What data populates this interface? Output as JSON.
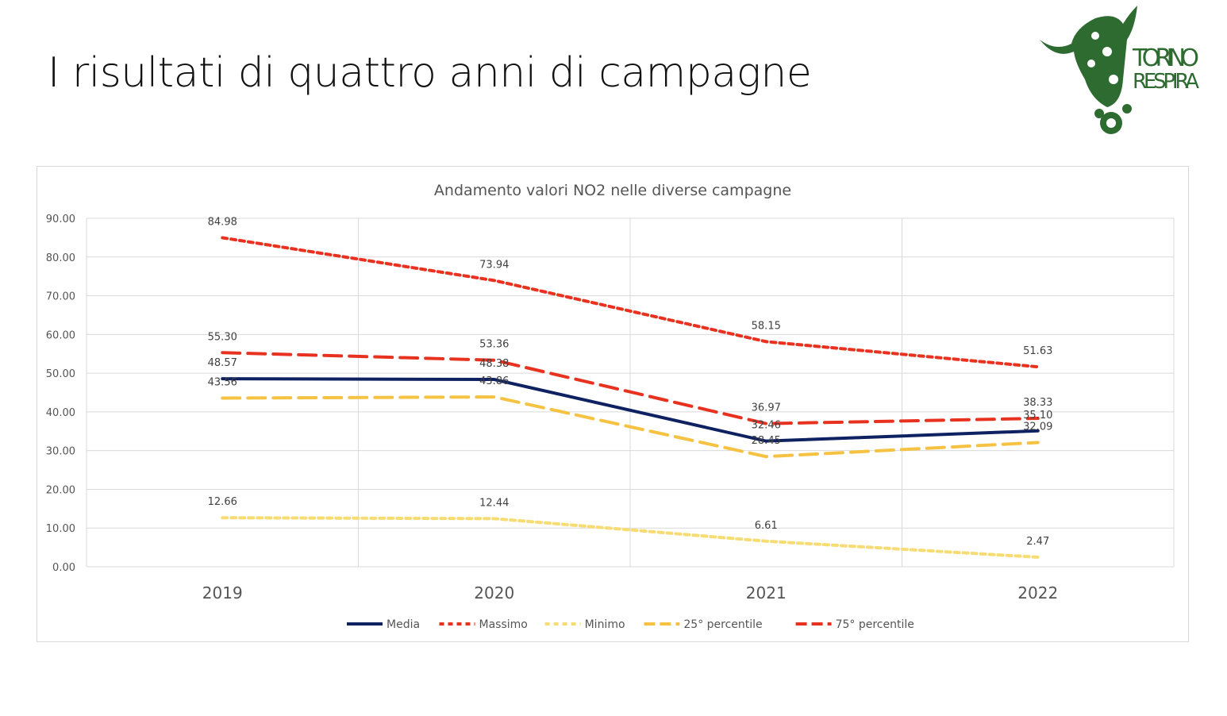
{
  "slide": {
    "title": "I risultati di quattro anni di campagne",
    "logo_text": "TORINO RESPIRA",
    "logo_color": "#2e6b30"
  },
  "chart_data": {
    "type": "line",
    "title": "Andamento valori NO2 nelle diverse campagne",
    "categories": [
      "2019",
      "2020",
      "2021",
      "2022"
    ],
    "ylim": [
      0,
      90
    ],
    "yticks": [
      "0.00",
      "10.00",
      "20.00",
      "30.00",
      "40.00",
      "50.00",
      "60.00",
      "70.00",
      "80.00",
      "90.00"
    ],
    "grid": true,
    "legend_position": "bottom",
    "series": [
      {
        "name": "Media",
        "values": [
          48.57,
          48.38,
          32.46,
          35.1
        ],
        "labels": [
          "48.57",
          "48.38",
          "32.46",
          "35.10"
        ],
        "color": "#0e2160",
        "dash": "solid"
      },
      {
        "name": "Massimo",
        "values": [
          84.98,
          73.94,
          58.15,
          51.63
        ],
        "labels": [
          "84.98",
          "73.94",
          "58.15",
          "51.63"
        ],
        "color": "#e8321f",
        "dash": "short"
      },
      {
        "name": "Minimo",
        "values": [
          12.66,
          12.44,
          6.61,
          2.47
        ],
        "labels": [
          "12.66",
          "12.44",
          "6.61",
          "2.47"
        ],
        "color": "#f7dc74",
        "dash": "short"
      },
      {
        "name": "25° percentile",
        "values": [
          43.56,
          43.86,
          28.45,
          32.09
        ],
        "labels": [
          "43.56",
          "43.86",
          "28.45",
          "32.09"
        ],
        "color": "#f5c242",
        "dash": "long"
      },
      {
        "name": "75° percentile",
        "values": [
          55.3,
          53.36,
          36.97,
          38.33
        ],
        "labels": [
          "55.30",
          "53.36",
          "36.97",
          "38.33"
        ],
        "color": "#e8321f",
        "dash": "long"
      }
    ]
  }
}
